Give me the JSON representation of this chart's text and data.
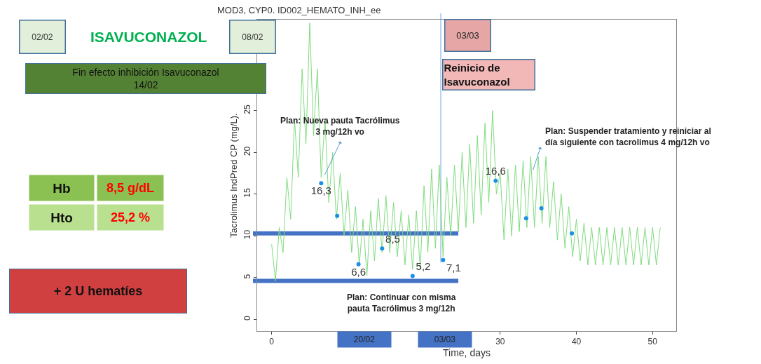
{
  "chart_data": {
    "type": "line",
    "title": "MOD3, CYP0. ID002_HEMATO_INH_ee",
    "xlabel": "Time, days",
    "ylabel": "Tacrolimus IndPred CP (mg/L).",
    "xlim": [
      -1.9,
      53.1
    ],
    "xticks": [
      0,
      30,
      40,
      50
    ],
    "ylim": [
      -1.4,
      35.9
    ],
    "yticks": [
      0,
      5,
      10,
      15,
      20,
      25
    ],
    "series": [
      {
        "color": "#7fdc7f",
        "line_style": "solid",
        "marker": "none",
        "x": [
          0,
          0.5,
          1,
          1.5,
          2,
          2.5,
          3,
          3.5,
          4,
          4.5,
          5,
          5.5,
          6,
          6.5,
          7,
          7.5,
          8,
          8.5,
          9,
          9.5,
          10,
          10.5,
          11,
          11.5,
          12,
          12.5,
          13,
          13.5,
          14,
          14.5,
          15,
          15.5,
          16,
          16.5,
          17,
          17.5,
          18,
          18.5,
          19,
          19.5,
          20,
          20.5,
          21,
          21.5,
          22,
          22.5,
          23,
          23.5,
          24,
          24.5,
          25,
          25.5,
          26,
          26.5,
          27,
          27.5,
          28,
          28.5,
          29,
          29.5,
          30,
          30.5,
          31,
          31.5,
          32,
          32.5,
          33,
          33.5,
          34,
          34.5,
          35,
          35.5,
          36,
          36.5,
          37,
          37.5,
          38,
          38.5,
          39,
          39.5,
          40,
          40.5,
          41,
          41.5,
          42,
          42.5,
          43,
          43.5,
          44,
          44.5,
          45,
          45.5,
          46,
          46.5,
          47,
          47.5,
          48,
          48.5,
          49,
          49.5,
          50,
          50.5,
          51
        ],
        "values": [
          9,
          4.6,
          11,
          8,
          17,
          12,
          24,
          17,
          30,
          21,
          35.5,
          22,
          30,
          17,
          24,
          14,
          20,
          12,
          17.5,
          10,
          15.5,
          8,
          13.5,
          6.5,
          12,
          5.2,
          13,
          7,
          14.5,
          8,
          14.8,
          8,
          14,
          7.5,
          13,
          6.5,
          12.5,
          6,
          13,
          6,
          16,
          8,
          18,
          8.5,
          18.5,
          7.5,
          17,
          10,
          18.5,
          10.5,
          20,
          11,
          21,
          11.5,
          22,
          12.5,
          23.5,
          14,
          25,
          15,
          17.5,
          9.5,
          18,
          10,
          18.5,
          10.5,
          19,
          11,
          19.5,
          11,
          19.5,
          11.5,
          19.5,
          11,
          16.5,
          9.5,
          15,
          8.5,
          13.5,
          7.5,
          12,
          7,
          11.5,
          6.5,
          11,
          6.5,
          11,
          6.5,
          11,
          6.5,
          11,
          6.5,
          11,
          6.5,
          11,
          6.5,
          11,
          6.5,
          11,
          6.5,
          11,
          6.5,
          11
        ]
      },
      {
        "type": "scatter",
        "color": "#1a8fe3",
        "marker": "circle",
        "x": [
          6.5,
          8.6,
          11.4,
          14.5,
          18.5,
          22.5,
          29.4,
          33.4,
          35.4,
          39.4
        ],
        "values": [
          16.3,
          12.4,
          6.6,
          8.5,
          5.2,
          7.1,
          16.6,
          12.1,
          13.3,
          10.3
        ],
        "value_labels": [
          "16,3",
          null,
          "6,6",
          "8,5",
          "5,2",
          "7,1",
          "16,6",
          null,
          null,
          null
        ]
      }
    ],
    "ref_lines": [
      {
        "axis": "y",
        "value": 10.3,
        "label": null,
        "color": "#4472c4"
      },
      {
        "axis": "y",
        "value": 4.6,
        "label": null,
        "color": "#4472c4"
      },
      {
        "axis": "x",
        "value": 22.2,
        "label": null,
        "color": "#9dc3e6"
      }
    ],
    "annotations": [
      "02/02",
      "ISAVUCONAZOL",
      "08/02",
      "Fin efecto inhibición Isavuconazol\n14/02",
      "03/03",
      "Reinicio de\nIsavuconazol",
      "Hb",
      "8,5 g/dL",
      "Hto",
      "25,2 %",
      "+ 2 U hematíes",
      {
        "text": "Plan: Nueva pauta Tacrólimus\n3 mg/12h vo",
        "x": 6.8,
        "y": 17
      },
      {
        "text": "Plan: Suspender tratamiento y reiniciar al\ndía siguiente con tacrolimus 4 mg/12h vo",
        "x": 34.2,
        "y": 17.6
      },
      "Plan: Continuar con misma\npauta Tacrólimus 3 mg/12h",
      "20/02",
      "03/03"
    ]
  }
}
